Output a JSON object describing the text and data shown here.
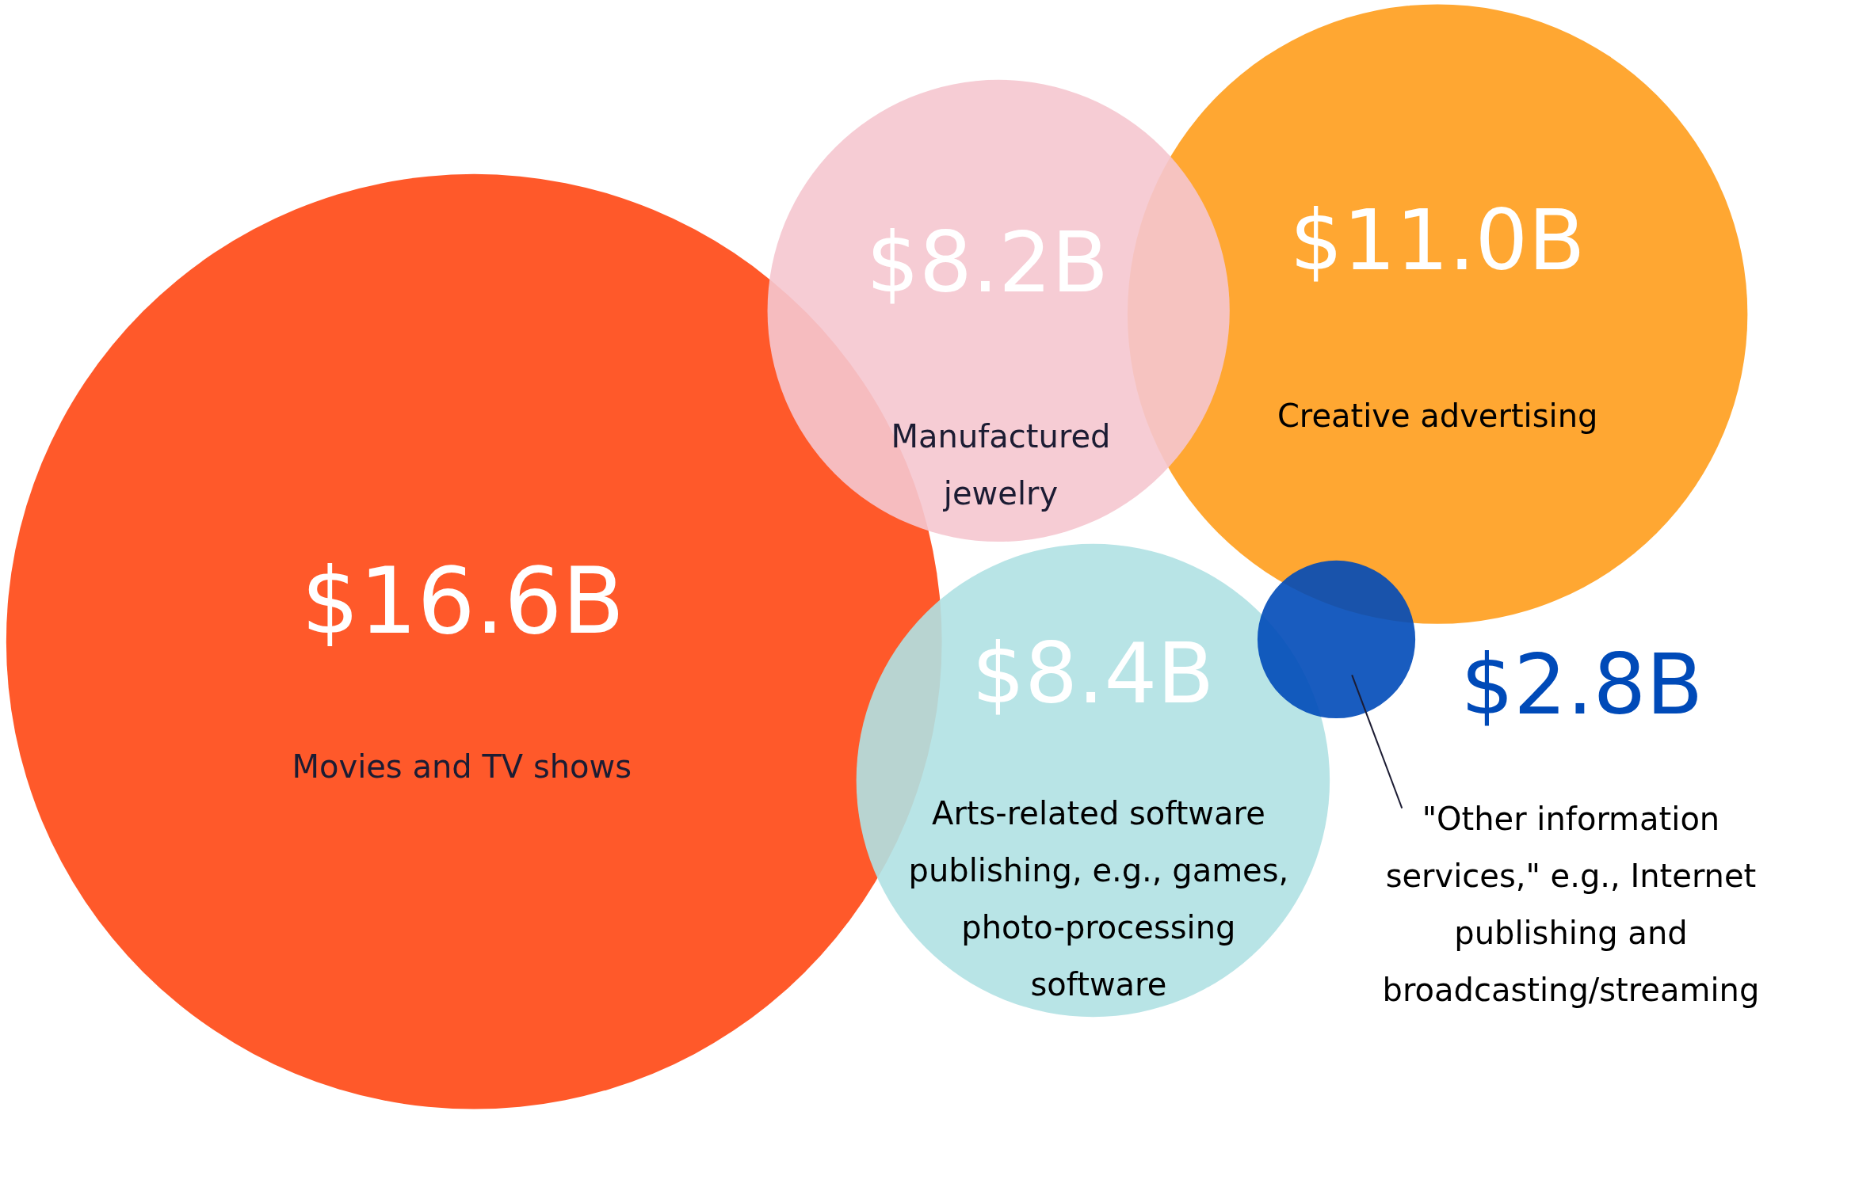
{
  "chart_data": {
    "type": "other",
    "categories": [
      "Movies and TV shows",
      "Manufactured jewelry",
      "Creative advertising",
      "Arts-related software publishing, e.g., games, photo-processing software",
      "\"Other information services,\" e.g., Internet publishing and broadcasting/streaming"
    ],
    "values": [
      16.6,
      8.2,
      11.0,
      8.4,
      2.8
    ],
    "value_labels": [
      "$16.6B",
      "$8.2B",
      "$11.0B",
      "$8.4B",
      "$2.8B"
    ],
    "colors": [
      "#ff4713",
      "#f5c6cf",
      "#ff9d1c",
      "#b0e1e3",
      "#004ab8"
    ]
  }
}
